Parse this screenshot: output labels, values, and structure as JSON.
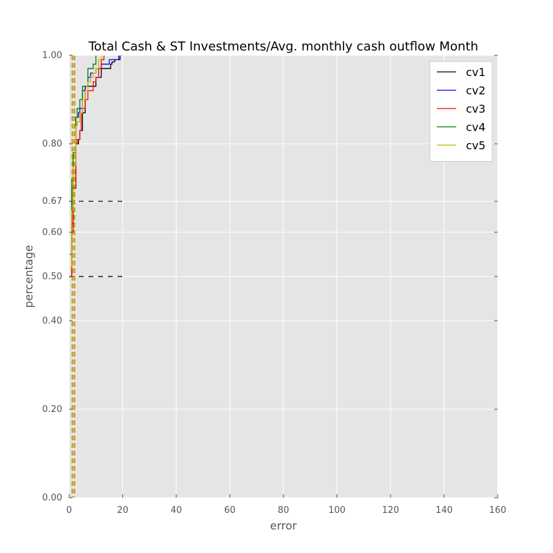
{
  "chart_data": {
    "type": "line",
    "title": "Total Cash & ST Investments/Avg. monthly cash outflow Month",
    "xlabel": "error",
    "ylabel": "percentage",
    "xlim": [
      0,
      160
    ],
    "ylim": [
      0,
      1
    ],
    "x_ticks": [
      "0",
      "20",
      "40",
      "60",
      "80",
      "100",
      "120",
      "140",
      "160"
    ],
    "x_tick_values": [
      0,
      20,
      40,
      60,
      80,
      100,
      120,
      140,
      160
    ],
    "y_ticks": [
      "0.00",
      "0.20",
      "0.40",
      "0.50",
      "0.60",
      "0.67",
      "0.80",
      "1.00"
    ],
    "y_tick_values": [
      0,
      0.2,
      0.4,
      0.5,
      0.6,
      0.67,
      0.8,
      1.0
    ],
    "grid": true,
    "legend_position": "top-right",
    "reference_lines": [
      {
        "orientation": "horizontal",
        "y": 0.67,
        "x_from": 0,
        "x_to": 20,
        "style": "dashed",
        "color": "#000000"
      },
      {
        "orientation": "horizontal",
        "y": 0.5,
        "x_from": 0,
        "x_to": 20,
        "style": "dashed",
        "color": "#000000"
      },
      {
        "orientation": "vertical",
        "x": 1.2,
        "style": "dashed",
        "color": "#c8a028"
      },
      {
        "orientation": "vertical",
        "x": 2.0,
        "style": "dashed",
        "color": "#c8a028"
      }
    ],
    "series": [
      {
        "name": "cv1",
        "color": "#000000",
        "x": [
          0.3,
          1,
          1.5,
          2.5,
          3.5,
          4,
          5,
          6,
          7,
          8,
          10,
          11,
          12,
          13,
          14,
          15,
          15.5,
          16,
          17,
          18,
          19,
          20
        ],
        "y": [
          0.5,
          0.62,
          0.7,
          0.8,
          0.81,
          0.83,
          0.87,
          0.93,
          0.93,
          0.93,
          0.95,
          0.95,
          0.97,
          0.97,
          0.97,
          0.97,
          0.98,
          0.985,
          0.99,
          0.99,
          1.0,
          1.0
        ]
      },
      {
        "name": "cv2",
        "color": "#0000ff",
        "x": [
          0.3,
          1,
          1.5,
          2.5,
          3.5,
          4,
          5,
          6,
          7,
          8,
          9,
          10,
          11,
          12,
          13,
          14,
          15,
          16,
          17,
          18,
          18.5
        ],
        "y": [
          0.55,
          0.7,
          0.75,
          0.86,
          0.87,
          0.88,
          0.92,
          0.93,
          0.95,
          0.96,
          0.96,
          0.97,
          0.97,
          0.98,
          0.98,
          0.98,
          0.99,
          0.99,
          0.99,
          0.99,
          1.0
        ]
      },
      {
        "name": "cv3",
        "color": "#ff0000",
        "x": [
          0.3,
          1,
          1.5,
          2.5,
          3,
          4,
          4.5,
          5,
          6,
          7,
          8,
          9,
          10,
          11,
          12,
          13
        ],
        "y": [
          0.5,
          0.6,
          0.7,
          0.8,
          0.81,
          0.83,
          0.87,
          0.88,
          0.9,
          0.92,
          0.92,
          0.94,
          0.95,
          0.97,
          0.99,
          1.0
        ]
      },
      {
        "name": "cv4",
        "color": "#008000",
        "x": [
          0.3,
          1,
          1.5,
          2.5,
          3,
          4,
          5,
          6,
          7,
          8,
          9,
          10
        ],
        "y": [
          0.6,
          0.72,
          0.78,
          0.86,
          0.88,
          0.9,
          0.93,
          0.93,
          0.97,
          0.97,
          0.98,
          1.0
        ]
      },
      {
        "name": "cv5",
        "color": "#c8b400",
        "x": [
          0.3,
          1,
          1.5,
          2.5,
          3,
          4,
          5,
          6,
          7,
          8,
          9,
          10,
          11,
          12
        ],
        "y": [
          0.52,
          0.65,
          0.75,
          0.84,
          0.85,
          0.87,
          0.9,
          0.92,
          0.94,
          0.95,
          0.96,
          0.97,
          0.99,
          1.0
        ]
      }
    ]
  }
}
